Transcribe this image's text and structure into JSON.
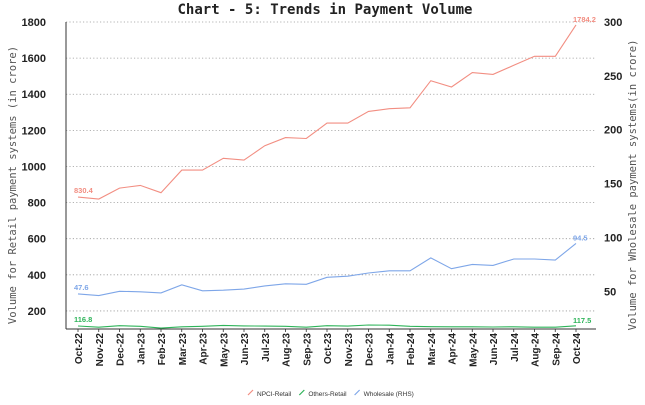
{
  "chart_data": {
    "type": "line",
    "title": "Chart - 5: Trends in Payment Volume",
    "ylabel_left": "Volume for Retail payment systems (in crore)",
    "ylabel_right": "Volume for Wholesale payment systems(in crore)",
    "ylim_left": [
      100,
      1800
    ],
    "yticks_left": [
      200,
      400,
      600,
      800,
      1000,
      1200,
      1400,
      1600,
      1800
    ],
    "ylim_right": [
      15,
      300
    ],
    "yticks_right": [
      50,
      100,
      150,
      200,
      250,
      300
    ],
    "grid": true,
    "legend_position": "bottom",
    "categories": [
      "Oct-22",
      "Nov-22",
      "Dec-22",
      "Jan-23",
      "Feb-23",
      "Mar-23",
      "Apr-23",
      "May-23",
      "Jun-23",
      "Jul-23",
      "Aug-23",
      "Sep-23",
      "Oct-23",
      "Nov-23",
      "Dec-23",
      "Jan-24",
      "Feb-24",
      "Mar-24",
      "Apr-24",
      "May-24",
      "Jun-24",
      "Jul-24",
      "Aug-24",
      "Sep-24",
      "Oct-24"
    ],
    "series": [
      {
        "name": "NPCI-Retail",
        "axis": "left",
        "color": "#f28e82",
        "values": [
          830.4,
          820,
          880,
          895,
          855,
          980,
          980,
          1045,
          1035,
          1115,
          1160,
          1155,
          1240,
          1240,
          1305,
          1320,
          1325,
          1475,
          1440,
          1520,
          1510,
          1560,
          1610,
          1610,
          1784.2
        ],
        "labels": {
          "first": "830.4",
          "last": "1784.2"
        }
      },
      {
        "name": "Others-Retail",
        "axis": "left",
        "color": "#2fb45a",
        "values": [
          116.8,
          110,
          118,
          115,
          105,
          112,
          115,
          120,
          117,
          116,
          115,
          110,
          118,
          116,
          122,
          121,
          115,
          113,
          112,
          112,
          111,
          112,
          110,
          110,
          117.5
        ],
        "labels": {
          "first": "116.8",
          "last": "117.5"
        }
      },
      {
        "name": "Wholesale (RHS)",
        "axis": "right",
        "color": "#7ea6e8",
        "values": [
          47.6,
          46,
          50,
          49.5,
          48.5,
          56,
          50.5,
          51,
          52,
          55,
          57,
          56.5,
          63,
          64,
          67,
          69,
          69,
          81,
          71,
          75,
          74,
          80,
          80,
          79,
          94.5
        ],
        "labels": {
          "first": "47.6",
          "last": "94.5"
        }
      }
    ]
  }
}
